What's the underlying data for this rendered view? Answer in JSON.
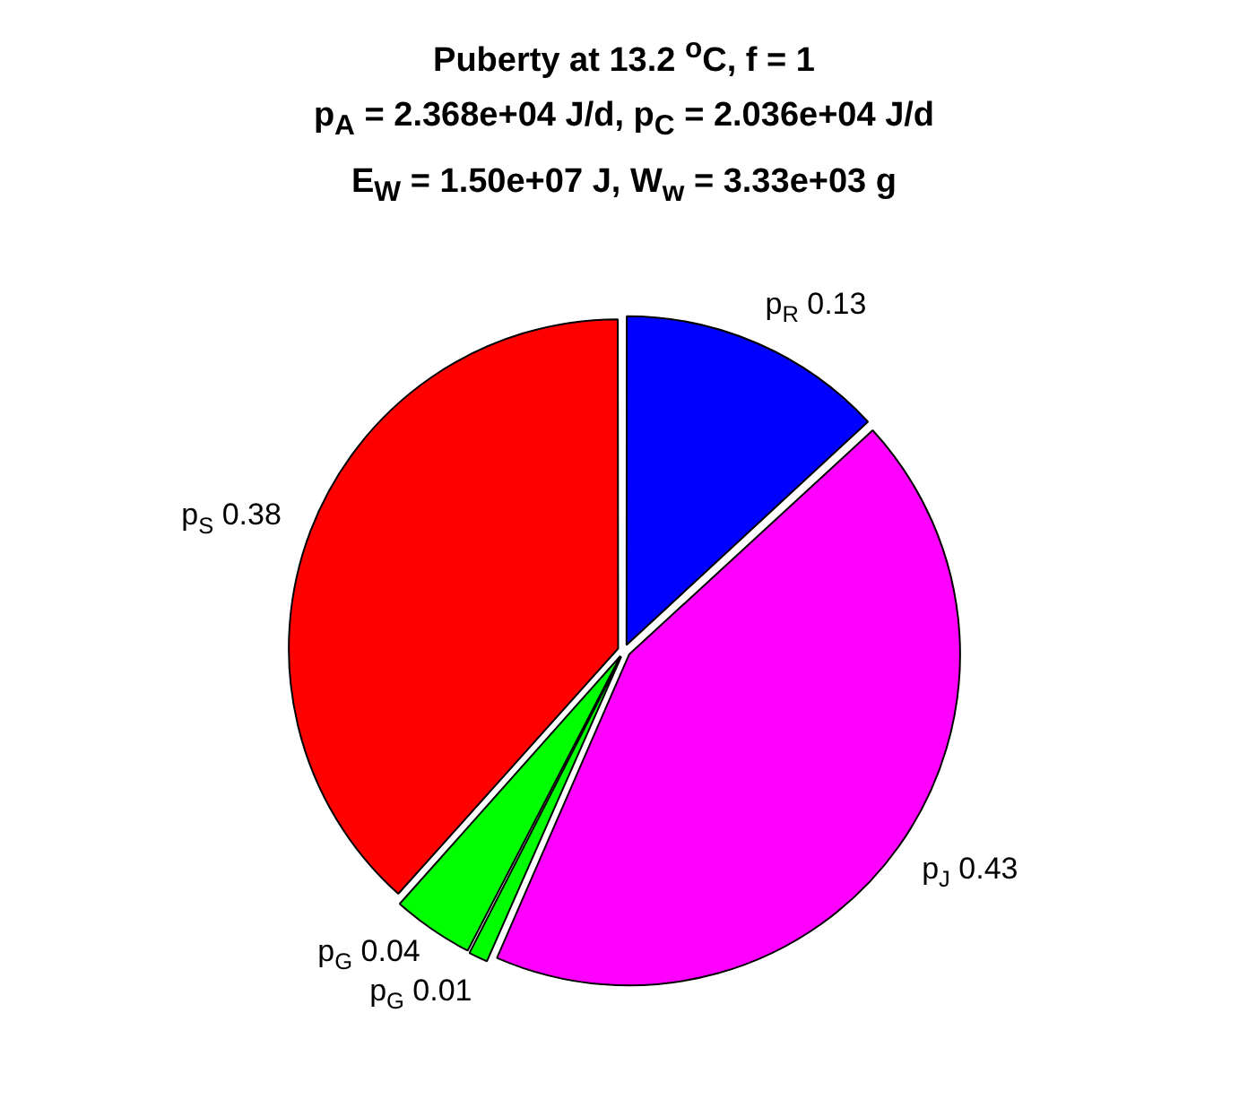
{
  "chart_data": {
    "type": "pie",
    "title": "Puberty at 13.2 $^{o}$C, f = 1",
    "subtitle": "p$_{A}$ = 2.368e+04 J/d,  p$_{C}$ = 2.036e+04 J/d\nE$_{W}$ = 1.50e+07 J, W$_{w}$ = 3.33e+03 g",
    "categories": [
      "p$_{R}$",
      "p$_{J}$",
      "p$_{G}$",
      "p$_{G}$",
      "p$_{S}$"
    ],
    "values": [
      0.13,
      0.43,
      0.01,
      0.04,
      0.38
    ],
    "colors": [
      "#0000ff",
      "#ff00ff",
      "#00ff00",
      "#00ff00",
      "#ff0000"
    ],
    "data_labels": true,
    "legend": false
  }
}
